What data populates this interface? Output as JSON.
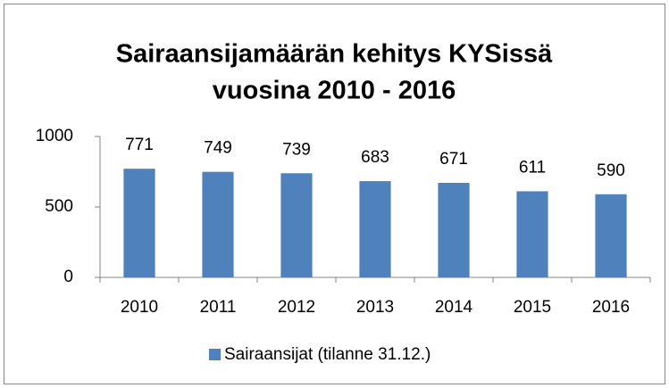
{
  "chart_data": {
    "type": "bar",
    "title": [
      "Sairaansijamäärän kehitys KYSissä",
      "vuosina 2010 - 2016"
    ],
    "categories": [
      "2010",
      "2011",
      "2012",
      "2013",
      "2014",
      "2015",
      "2016"
    ],
    "series": [
      {
        "name": "Sairaansijat (tilanne 31.12.)",
        "color": "#4f81bd",
        "values": [
          771,
          749,
          739,
          683,
          671,
          611,
          590
        ]
      }
    ],
    "ylim": [
      0,
      1000
    ],
    "yticks": [
      0,
      500,
      1000
    ],
    "grid": false,
    "legend": "bottom"
  }
}
